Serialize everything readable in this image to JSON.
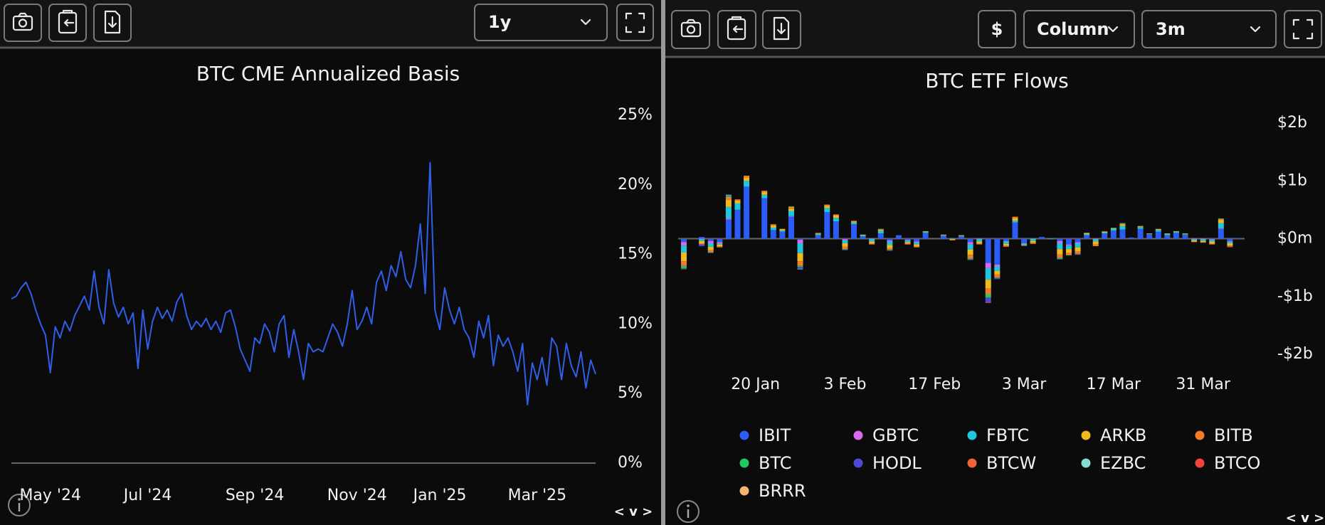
{
  "panels": [
    {
      "range_select": "1y",
      "nav": "< v >"
    },
    {
      "currency": "$",
      "chart_style_select": "Column",
      "range_select": "3m",
      "nav": "< v >"
    }
  ],
  "chart_data": [
    {
      "type": "line",
      "title": "BTC CME Annualized Basis",
      "color": "#2f5fe8",
      "categories": [
        null,
        null,
        null,
        null,
        null,
        null,
        null,
        null,
        "May '24",
        null,
        null,
        null,
        null,
        null,
        null,
        null,
        null,
        null,
        null,
        null,
        null,
        null,
        null,
        null,
        null,
        null,
        null,
        null,
        "Jul '24",
        null,
        null,
        null,
        null,
        null,
        null,
        null,
        null,
        null,
        null,
        null,
        null,
        null,
        null,
        null,
        null,
        null,
        null,
        null,
        null,
        null,
        "Sep '24",
        null,
        null,
        null,
        null,
        null,
        null,
        null,
        null,
        null,
        null,
        null,
        null,
        null,
        null,
        null,
        null,
        null,
        null,
        null,
        null,
        "Nov '24",
        null,
        null,
        null,
        null,
        null,
        null,
        null,
        null,
        null,
        null,
        null,
        null,
        null,
        null,
        null,
        null,
        "Jan '25",
        null,
        null,
        null,
        null,
        null,
        null,
        null,
        null,
        null,
        null,
        null,
        null,
        null,
        null,
        null,
        null,
        null,
        null,
        null,
        "Mar '25",
        null,
        null,
        null,
        null,
        null,
        null,
        null,
        null,
        null,
        null,
        null,
        null
      ],
      "values": [
        11.8,
        12.0,
        12.6,
        13.0,
        12.2,
        11.0,
        10.0,
        9.2,
        6.5,
        9.8,
        9.0,
        10.2,
        9.5,
        10.6,
        11.3,
        12.0,
        11.0,
        13.8,
        11.2,
        10.0,
        13.9,
        11.5,
        10.5,
        11.2,
        10.0,
        10.8,
        6.8,
        11.0,
        8.2,
        10.2,
        11.2,
        10.4,
        11.0,
        10.2,
        11.6,
        12.2,
        10.6,
        9.6,
        10.2,
        9.8,
        10.4,
        9.6,
        10.2,
        9.4,
        10.8,
        11.0,
        9.8,
        8.2,
        7.4,
        6.6,
        9.0,
        8.6,
        10.0,
        9.4,
        8.0,
        10.0,
        10.6,
        7.6,
        9.6,
        8.0,
        6.0,
        8.6,
        8.0,
        8.2,
        8.0,
        9.0,
        10.0,
        9.4,
        8.4,
        10.0,
        12.4,
        9.6,
        10.2,
        11.2,
        10.0,
        13.0,
        13.8,
        12.4,
        14.2,
        13.4,
        15.2,
        13.2,
        12.6,
        14.2,
        17.2,
        12.2,
        21.6,
        11.0,
        9.6,
        12.6,
        11.0,
        10.0,
        11.2,
        9.6,
        9.0,
        7.6,
        10.2,
        9.0,
        10.6,
        7.0,
        9.2,
        8.4,
        9.0,
        8.0,
        6.6,
        8.6,
        4.2,
        7.2,
        6.0,
        7.6,
        5.6,
        9.0,
        8.4,
        6.0,
        8.6,
        7.0,
        6.2,
        8.0,
        5.4,
        7.4,
        6.4
      ],
      "ylim": [
        0,
        25
      ],
      "yticks": [
        {
          "value": 0,
          "label": "0%"
        },
        {
          "value": 5,
          "label": "5%"
        },
        {
          "value": 10,
          "label": "10%"
        },
        {
          "value": 15,
          "label": "15%"
        },
        {
          "value": 20,
          "label": "20%"
        },
        {
          "value": 25,
          "label": "25%"
        }
      ]
    },
    {
      "type": "bar",
      "stacked": true,
      "title": "BTC ETF Flows",
      "legend": "bottom",
      "categories": [
        null,
        null,
        null,
        null,
        null,
        null,
        null,
        null,
        "20 Jan",
        null,
        null,
        null,
        null,
        null,
        null,
        null,
        null,
        null,
        "3 Feb",
        null,
        null,
        null,
        null,
        null,
        null,
        null,
        null,
        null,
        "17 Feb",
        null,
        null,
        null,
        null,
        null,
        null,
        null,
        null,
        null,
        "3 Mar",
        null,
        null,
        null,
        null,
        null,
        null,
        null,
        null,
        null,
        "17 Mar",
        null,
        null,
        null,
        null,
        null,
        null,
        null,
        null,
        null,
        "31 Mar",
        null,
        null,
        null,
        null
      ],
      "ylim": [
        -2000,
        2000
      ],
      "yticks": [
        {
          "value": 2000,
          "label": "$2b"
        },
        {
          "value": 1000,
          "label": "$1b"
        },
        {
          "value": 0,
          "label": "$0m"
        },
        {
          "value": -1000,
          "label": "-$1b"
        },
        {
          "value": -2000,
          "label": "-$2b"
        }
      ],
      "series": [
        {
          "name": "IBIT",
          "color": "#2b5cf5",
          "values": [
            -60,
            0,
            30,
            -40,
            -60,
            330,
            500,
            900,
            null,
            700,
            150,
            120,
            380,
            -20,
            10,
            60,
            460,
            300,
            -10,
            250,
            40,
            0,
            90,
            -30,
            60,
            -20,
            -50,
            100,
            null,
            50,
            0,
            40,
            -60,
            0,
            -420,
            -450,
            -40,
            280,
            -80,
            0,
            30,
            0,
            -40,
            -100,
            -60,
            60,
            0,
            90,
            140,
            160,
            20,
            170,
            80,
            120,
            60,
            100,
            70,
            0,
            0,
            -10,
            170,
            -40,
            10
          ]
        },
        {
          "name": "GBTC",
          "color": "#d86af0",
          "values": [
            -60,
            0,
            -10,
            -40,
            -20,
            20,
            0,
            0,
            null,
            0,
            0,
            0,
            10,
            -60,
            0,
            0,
            0,
            0,
            -20,
            0,
            0,
            -10,
            0,
            -20,
            0,
            -10,
            -20,
            0,
            null,
            0,
            0,
            0,
            -40,
            -10,
            -90,
            -30,
            -10,
            0,
            0,
            0,
            0,
            0,
            -40,
            -20,
            -20,
            0,
            -10,
            0,
            0,
            0,
            0,
            0,
            0,
            0,
            0,
            0,
            0,
            -10,
            -10,
            -10,
            10,
            -10,
            0
          ]
        },
        {
          "name": "FBTC",
          "color": "#1fc6dc",
          "values": [
            -120,
            0,
            -30,
            -60,
            -20,
            200,
            110,
            100,
            null,
            60,
            40,
            20,
            90,
            -170,
            0,
            20,
            70,
            60,
            -50,
            30,
            20,
            -40,
            40,
            -60,
            0,
            -30,
            -30,
            20,
            null,
            10,
            -10,
            10,
            -90,
            -40,
            -200,
            -80,
            -40,
            30,
            -20,
            -40,
            0,
            -10,
            -100,
            -60,
            -70,
            20,
            -40,
            20,
            30,
            60,
            0,
            30,
            0,
            30,
            20,
            20,
            10,
            -20,
            -30,
            -30,
            90,
            -30,
            0
          ]
        },
        {
          "name": "ARKB",
          "color": "#f2b91c",
          "values": [
            -150,
            0,
            -40,
            -60,
            -30,
            120,
            50,
            60,
            null,
            50,
            40,
            20,
            40,
            -140,
            0,
            10,
            40,
            40,
            -60,
            20,
            10,
            -30,
            20,
            -50,
            0,
            -20,
            -30,
            10,
            null,
            10,
            -10,
            10,
            -90,
            -30,
            -150,
            -60,
            -30,
            50,
            -10,
            -30,
            0,
            0,
            -90,
            -60,
            -70,
            20,
            -50,
            10,
            10,
            30,
            0,
            10,
            10,
            10,
            10,
            10,
            10,
            -20,
            -20,
            -30,
            50,
            -40,
            0
          ]
        },
        {
          "name": "BITB",
          "color": "#f47a2c",
          "values": [
            -80,
            0,
            -20,
            -30,
            -20,
            50,
            20,
            30,
            null,
            20,
            20,
            10,
            30,
            -80,
            0,
            10,
            20,
            20,
            -40,
            10,
            0,
            -20,
            10,
            -30,
            0,
            -20,
            -20,
            0,
            null,
            0,
            -10,
            0,
            -60,
            -20,
            -100,
            -50,
            -20,
            20,
            -10,
            -20,
            0,
            0,
            -60,
            -40,
            -40,
            0,
            -30,
            10,
            0,
            10,
            0,
            10,
            0,
            10,
            0,
            0,
            0,
            -10,
            -10,
            -20,
            20,
            -20,
            0
          ]
        },
        {
          "name": "BTC",
          "color": "#1ec95f",
          "values": [
            -40,
            0,
            0,
            -10,
            0,
            20,
            0,
            0,
            null,
            0,
            0,
            0,
            10,
            -20,
            0,
            0,
            0,
            0,
            -10,
            0,
            0,
            0,
            10,
            -10,
            0,
            0,
            0,
            0,
            null,
            0,
            0,
            0,
            -20,
            0,
            -60,
            -10,
            0,
            0,
            0,
            0,
            0,
            0,
            -20,
            -10,
            -10,
            0,
            0,
            0,
            10,
            10,
            0,
            0,
            0,
            0,
            0,
            0,
            0,
            0,
            0,
            0,
            10,
            0,
            0
          ]
        },
        {
          "name": "HODL",
          "color": "#5048d8",
          "values": [
            -10,
            0,
            -30,
            -10,
            0,
            10,
            0,
            0,
            null,
            0,
            0,
            0,
            0,
            -30,
            0,
            0,
            0,
            0,
            -10,
            0,
            0,
            0,
            0,
            -10,
            0,
            0,
            0,
            0,
            null,
            0,
            0,
            0,
            -10,
            0,
            -80,
            -20,
            0,
            0,
            -10,
            0,
            0,
            0,
            -10,
            0,
            -10,
            0,
            0,
            0,
            0,
            0,
            0,
            0,
            0,
            0,
            0,
            0,
            0,
            0,
            0,
            0,
            0,
            -10,
            0
          ]
        },
        {
          "name": "BTCW",
          "color": "#f0643a",
          "values": [
            0,
            0,
            0,
            0,
            0,
            0,
            0,
            0,
            null,
            0,
            0,
            0,
            0,
            0,
            0,
            0,
            0,
            0,
            0,
            0,
            0,
            0,
            0,
            0,
            0,
            0,
            0,
            0,
            null,
            0,
            0,
            0,
            0,
            0,
            -10,
            0,
            0,
            0,
            0,
            0,
            0,
            0,
            0,
            0,
            0,
            0,
            0,
            0,
            0,
            0,
            0,
            0,
            0,
            0,
            0,
            0,
            0,
            0,
            0,
            0,
            0,
            0,
            0
          ]
        },
        {
          "name": "EZBC",
          "color": "#86dcd3",
          "values": [
            0,
            0,
            0,
            0,
            0,
            10,
            0,
            0,
            null,
            0,
            0,
            0,
            0,
            -10,
            0,
            0,
            0,
            0,
            0,
            0,
            0,
            0,
            0,
            0,
            0,
            0,
            0,
            0,
            null,
            0,
            0,
            0,
            0,
            0,
            0,
            0,
            0,
            0,
            0,
            0,
            0,
            0,
            0,
            0,
            0,
            0,
            0,
            0,
            0,
            0,
            0,
            0,
            0,
            0,
            0,
            0,
            0,
            0,
            0,
            0,
            0,
            0,
            0
          ]
        },
        {
          "name": "BTCO",
          "color": "#f0433f",
          "values": [
            -10,
            0,
            0,
            0,
            0,
            0,
            0,
            0,
            null,
            0,
            0,
            0,
            0,
            0,
            0,
            0,
            0,
            0,
            0,
            0,
            0,
            0,
            0,
            0,
            0,
            0,
            0,
            0,
            null,
            0,
            0,
            0,
            0,
            0,
            0,
            0,
            0,
            0,
            0,
            0,
            0,
            0,
            0,
            0,
            0,
            0,
            0,
            0,
            0,
            0,
            0,
            0,
            0,
            0,
            0,
            0,
            0,
            0,
            0,
            0,
            0,
            0,
            0
          ]
        },
        {
          "name": "BRRR",
          "color": "#f7b46e",
          "values": [
            0,
            0,
            0,
            0,
            0,
            0,
            0,
            0,
            null,
            0,
            0,
            0,
            0,
            0,
            0,
            0,
            0,
            0,
            0,
            0,
            0,
            0,
            0,
            0,
            0,
            0,
            0,
            0,
            null,
            0,
            0,
            0,
            0,
            0,
            0,
            0,
            0,
            0,
            0,
            0,
            0,
            0,
            0,
            0,
            0,
            0,
            0,
            0,
            0,
            0,
            0,
            0,
            0,
            0,
            0,
            0,
            0,
            0,
            0,
            0,
            0,
            0,
            0
          ]
        }
      ]
    }
  ]
}
